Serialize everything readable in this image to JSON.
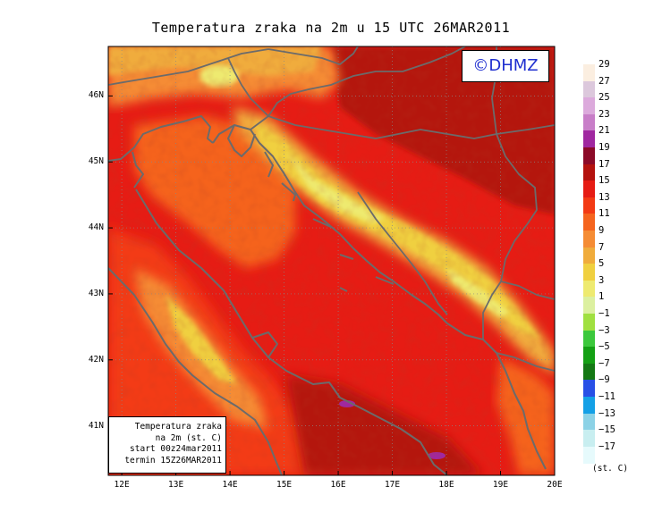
{
  "title": "Temperatura zraka na 2m u 15 UTC 26MAR2011",
  "copyright": "©DHMZ",
  "info_box": [
    "Temperatura zraka",
    "na 2m (st. C)",
    "start 00z24mar2011",
    "termin 15Z26MAR2011"
  ],
  "lat_ticks": [
    {
      "value": 46,
      "label": "46N"
    },
    {
      "value": 45,
      "label": "45N"
    },
    {
      "value": 44,
      "label": "44N"
    },
    {
      "value": 43,
      "label": "43N"
    },
    {
      "value": 42,
      "label": "42N"
    },
    {
      "value": 41,
      "label": "41N"
    }
  ],
  "lon_ticks": [
    {
      "value": 12,
      "label": "12E"
    },
    {
      "value": 13,
      "label": "13E"
    },
    {
      "value": 14,
      "label": "14E"
    },
    {
      "value": 15,
      "label": "15E"
    },
    {
      "value": 16,
      "label": "16E"
    },
    {
      "value": 17,
      "label": "17E"
    },
    {
      "value": 18,
      "label": "18E"
    },
    {
      "value": 19,
      "label": "19E"
    },
    {
      "value": 20,
      "label": "20E"
    }
  ],
  "extent": {
    "lon_min": 11.75,
    "lon_max": 20.0,
    "lat_min": 40.25,
    "lat_max": 46.75
  },
  "legend": {
    "unit": "(st. C)",
    "labels": [
      "29",
      "27",
      "25",
      "23",
      "21",
      "19",
      "17",
      "15",
      "13",
      "11",
      "9",
      "7",
      "5",
      "3",
      "1",
      "−1",
      "−3",
      "−5",
      "−7",
      "−9",
      "−11",
      "−13",
      "−15",
      "−17"
    ],
    "colors": [
      "#fbeee0",
      "#dcc8dc",
      "#dcaadc",
      "#c87ec8",
      "#a028a0",
      "#8c0a28",
      "#b4120e",
      "#e61c14",
      "#f33a14",
      "#f5641e",
      "#f58c34",
      "#f0ac3c",
      "#f0d040",
      "#eeea70",
      "#dcf0a0",
      "#a0e040",
      "#3cc83c",
      "#14a014",
      "#147814",
      "#2850e6",
      "#14a0e6",
      "#8cd2e6",
      "#c8eef0",
      "#e6fafc"
    ]
  },
  "chart_data": {
    "type": "heatmap",
    "title": "Temperatura zraka na 2m u 15 UTC 26MAR2011",
    "xlabel": "",
    "ylabel": "",
    "xlim": [
      11.75,
      20.0
    ],
    "ylim": [
      40.25,
      46.75
    ],
    "x_ticks": [
      "12E",
      "13E",
      "14E",
      "15E",
      "16E",
      "17E",
      "18E",
      "19E",
      "20E"
    ],
    "y_ticks": [
      "41N",
      "42N",
      "43N",
      "44N",
      "45N",
      "46N"
    ],
    "colorbar_levels": [
      29,
      27,
      25,
      23,
      21,
      19,
      17,
      15,
      13,
      11,
      9,
      7,
      5,
      3,
      1,
      -1,
      -3,
      -5,
      -7,
      -9,
      -11,
      -13,
      -15,
      -17
    ],
    "colorbar_unit": "(st. C)",
    "grid": true,
    "legend_position": "right",
    "features": [
      "coastlines",
      "country borders"
    ]
  }
}
